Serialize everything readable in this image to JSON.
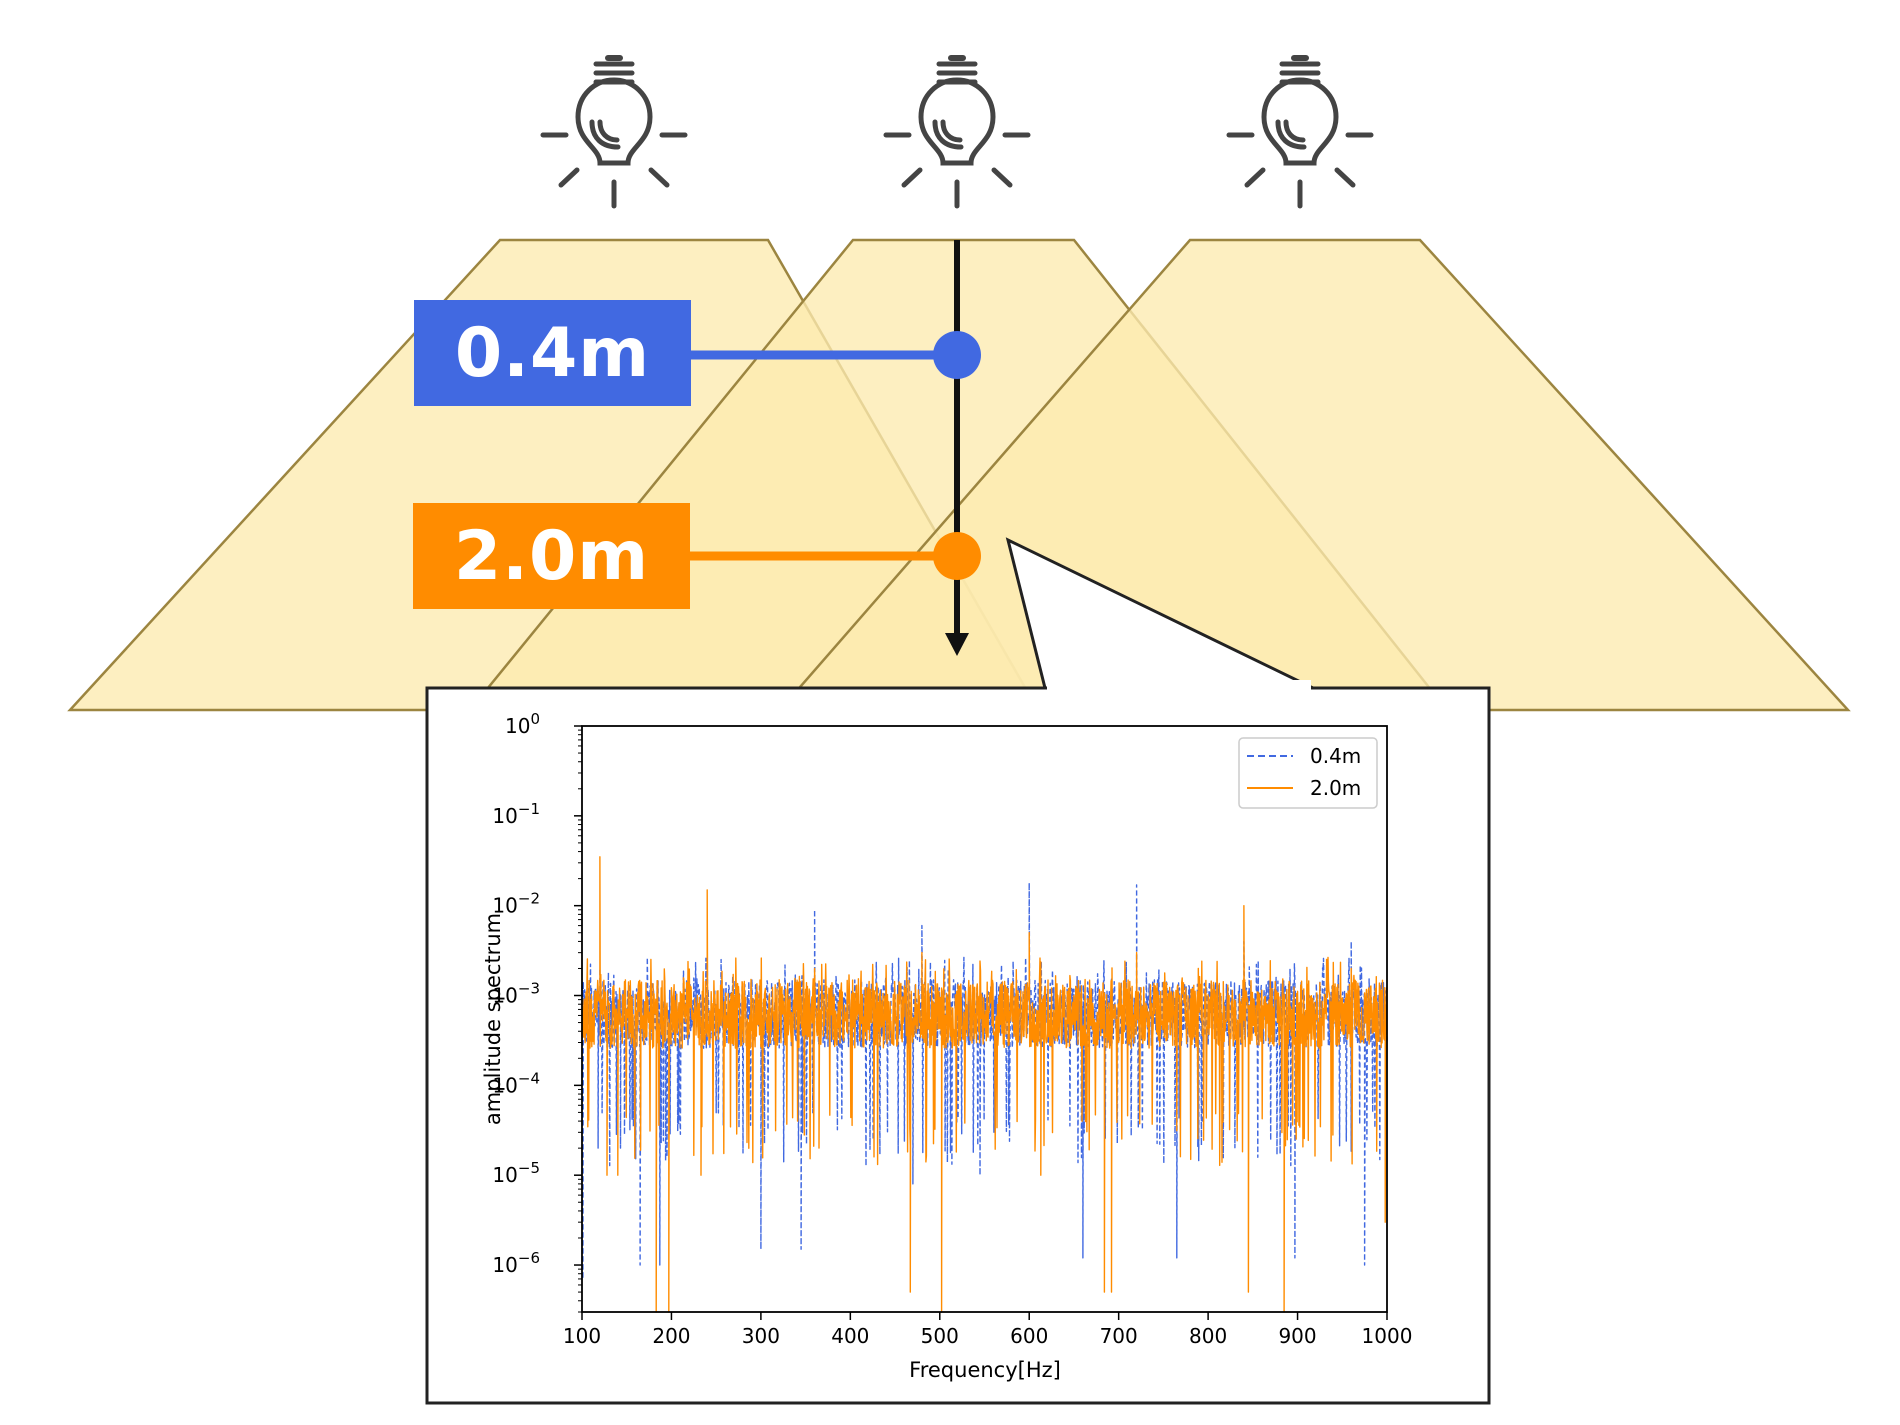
{
  "scene": {
    "labels": {
      "near": "0.4m",
      "far": "2.0m"
    },
    "colors": {
      "near": "#4169E1",
      "far": "#FF8C00",
      "light_cone": "#FDEBB0",
      "light_cone_edge": "#9C8540",
      "bulb": "#444444",
      "axis_arrow": "#111111"
    },
    "icons": [
      "light-bulb-icon",
      "light-bulb-icon",
      "light-bulb-icon"
    ]
  },
  "chart_data": {
    "type": "line",
    "xlabel": "Frequency[Hz]",
    "ylabel": "amplitude spectrum",
    "xlim": [
      100,
      1000
    ],
    "ylim": [
      3e-07,
      1
    ],
    "yscale": "log",
    "xticks": [
      "100",
      "200",
      "300",
      "400",
      "500",
      "600",
      "700",
      "800",
      "900",
      "1000"
    ],
    "yticks": [
      {
        "base": "10",
        "exp": "0"
      },
      {
        "base": "10",
        "exp": "−1"
      },
      {
        "base": "10",
        "exp": "−2"
      },
      {
        "base": "10",
        "exp": "−3"
      },
      {
        "base": "10",
        "exp": "−4"
      },
      {
        "base": "10",
        "exp": "−5"
      },
      {
        "base": "10",
        "exp": "−6"
      }
    ],
    "legend_location": "upper right",
    "grid": false,
    "series": [
      {
        "name": "0.4m",
        "color": "#4169E1",
        "style": "dashed",
        "noise_band": [
          0.0001,
          0.0015
        ],
        "peaks": [
          {
            "x": 120,
            "y": 0.002
          },
          {
            "x": 240,
            "y": 0.004
          },
          {
            "x": 360,
            "y": 0.009
          },
          {
            "x": 480,
            "y": 0.006
          },
          {
            "x": 600,
            "y": 0.018
          },
          {
            "x": 720,
            "y": 0.017
          },
          {
            "x": 840,
            "y": 0.004
          },
          {
            "x": 960,
            "y": 0.004
          }
        ],
        "dips": [
          {
            "x": 101,
            "y": 7e-07
          },
          {
            "x": 118,
            "y": 2e-05
          },
          {
            "x": 143,
            "y": 2e-05
          },
          {
            "x": 165,
            "y": 1e-06
          },
          {
            "x": 187,
            "y": 1e-06
          },
          {
            "x": 300,
            "y": 1.5e-06
          },
          {
            "x": 345,
            "y": 1.5e-06
          },
          {
            "x": 470,
            "y": 8e-06
          },
          {
            "x": 545,
            "y": 1e-05
          },
          {
            "x": 660,
            "y": 1.2e-06
          },
          {
            "x": 765,
            "y": 1.2e-06
          },
          {
            "x": 897,
            "y": 1.2e-06
          },
          {
            "x": 975,
            "y": 1e-06
          }
        ]
      },
      {
        "name": "2.0m",
        "color": "#FF8C00",
        "style": "solid",
        "noise_band": [
          0.0001,
          0.0015
        ],
        "peaks": [
          {
            "x": 120,
            "y": 0.035
          },
          {
            "x": 240,
            "y": 0.015
          },
          {
            "x": 360,
            "y": 0.002
          },
          {
            "x": 480,
            "y": 0.003
          },
          {
            "x": 600,
            "y": 0.005
          },
          {
            "x": 720,
            "y": 0.003
          },
          {
            "x": 840,
            "y": 0.01
          },
          {
            "x": 960,
            "y": 0.002
          }
        ],
        "dips": [
          {
            "x": 128,
            "y": 1e-05
          },
          {
            "x": 140,
            "y": 1e-05
          },
          {
            "x": 183,
            "y": 3e-07
          },
          {
            "x": 197,
            "y": 3e-07
          },
          {
            "x": 233,
            "y": 1e-05
          },
          {
            "x": 365,
            "y": 2e-05
          },
          {
            "x": 467,
            "y": 5e-07
          },
          {
            "x": 502,
            "y": 3e-07
          },
          {
            "x": 613,
            "y": 1e-05
          },
          {
            "x": 684,
            "y": 5e-07
          },
          {
            "x": 692,
            "y": 5e-07
          },
          {
            "x": 845,
            "y": 5e-07
          },
          {
            "x": 885,
            "y": 3e-07
          },
          {
            "x": 998,
            "y": 3e-06
          }
        ]
      }
    ]
  }
}
